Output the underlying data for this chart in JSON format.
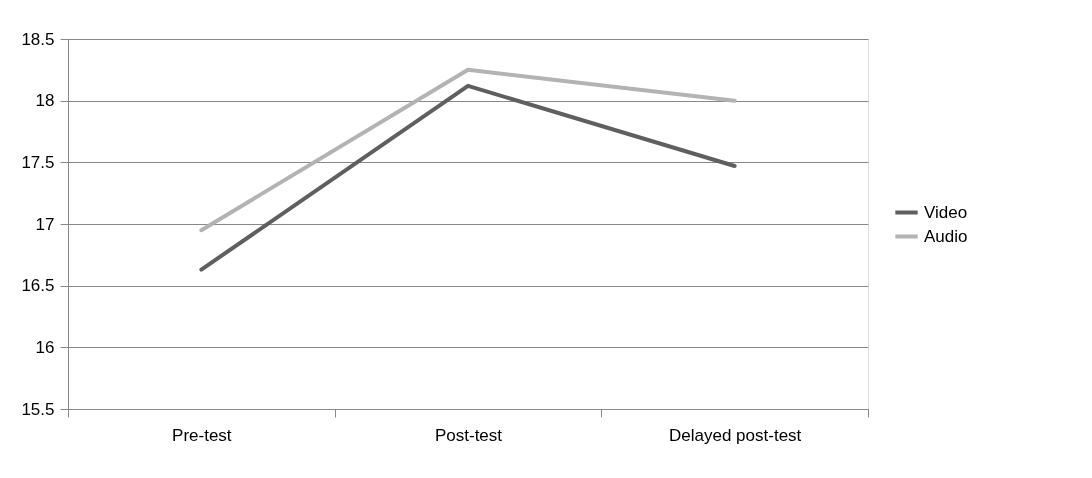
{
  "chart_data": {
    "type": "line",
    "categories": [
      "Pre-test",
      "Post-test",
      "Delayed post-test"
    ],
    "series": [
      {
        "name": "Video",
        "color": "#5f5f5f",
        "values": [
          16.63,
          18.12,
          17.47
        ]
      },
      {
        "name": "Audio",
        "color": "#b3b3b3",
        "values": [
          16.95,
          18.25,
          18.0
        ]
      }
    ],
    "ylim": [
      15.5,
      18.5
    ],
    "yticks": [
      15.5,
      16,
      16.5,
      17,
      17.5,
      18,
      18.5
    ],
    "grid": "y",
    "legend": "right",
    "marker": "none",
    "line_style": "solid"
  }
}
